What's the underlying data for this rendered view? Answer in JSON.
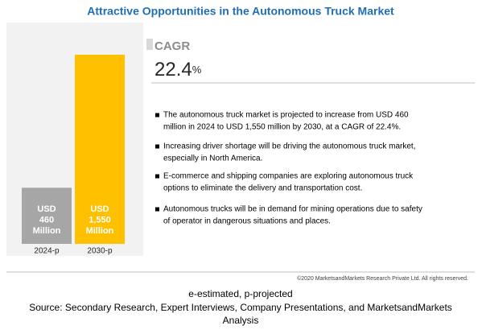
{
  "chart_data": {
    "type": "bar",
    "title": "Attractive Opportunities in the Autonomous Truck Market",
    "categories": [
      "2024-p",
      "2030-p"
    ],
    "values": [
      460,
      1550
    ],
    "value_labels": [
      [
        "USD",
        "460",
        "Million"
      ],
      [
        "USD",
        "1,550",
        "Million"
      ]
    ],
    "colors": [
      "#a6a6a6",
      "#ffc000"
    ],
    "cagr_label": "CAGR",
    "cagr_value": 22.4,
    "cagr_unit": "%",
    "notes": [
      [
        "The autonomous truck market is projected to increase from USD 460",
        "million in 2024 to USD 1,550 million by 2030, at a CAGR of 22.4%."
      ],
      [
        "Increasing driver shortage will be driving the autonomous truck market,",
        "especially in North America."
      ],
      [
        "E-commerce and shipping companies are exploring autonomous truck",
        "options to eliminate the delivery and transportation cost."
      ],
      [
        "Autonomous trucks will be in demand for mining operations due to safety",
        "of operator in dangerous situations and places."
      ]
    ],
    "copyright": "©2020 MarketsandMarkets Research Private Ltd. All rights reserved.",
    "footnote": "e-estimated, p-projected",
    "source": [
      "Source: Secondary Research, Expert Interviews, Company Presentations, and MarketsandMarkets",
      "Analysis"
    ]
  }
}
